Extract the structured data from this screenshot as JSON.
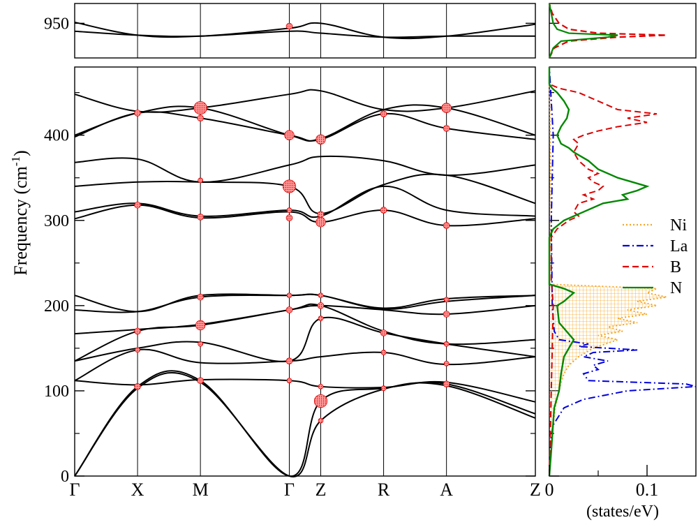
{
  "chart_data": [
    {
      "type": "line",
      "panel": "phonon-dispersion",
      "ylabel": "Frequency (cm",
      "ylabel_superscript": "-1",
      "ylabel_close": ")",
      "lower_ylim": [
        0,
        480
      ],
      "upper_ylim": [
        915,
        970
      ],
      "lower_yticks": [
        "0",
        "100",
        "200",
        "300",
        "400"
      ],
      "lower_ytick_values": [
        0,
        100,
        200,
        300,
        400
      ],
      "upper_yticks": [
        "950"
      ],
      "upper_ytick_values": [
        950
      ],
      "k_points": [
        {
          "label": "Γ",
          "pos": 0
        },
        {
          "label": "X",
          "pos": 0.5
        },
        {
          "label": "M",
          "pos": 1.0
        },
        {
          "label": "Γ",
          "pos": 1.707
        },
        {
          "label": "Z",
          "pos": 1.957
        },
        {
          "label": "R",
          "pos": 2.457
        },
        {
          "label": "A",
          "pos": 2.957
        },
        {
          "label": "Z",
          "pos": 3.664
        }
      ],
      "upper_bands": [
        {
          "x": [
            0,
            0.5,
            1.0,
            1.707,
            1.957,
            2.457,
            2.957,
            3.664
          ],
          "y": [
            951,
            938,
            937,
            945,
            950,
            936,
            937,
            949
          ]
        },
        {
          "x": [
            0,
            0.5,
            1.0,
            1.707,
            1.957,
            2.457,
            2.957,
            3.664
          ],
          "y": [
            942,
            938,
            937,
            942,
            940,
            936,
            937,
            937
          ]
        }
      ],
      "lower_bands": [
        {
          "x": [
            0,
            0.5,
            1.0,
            1.707,
            1.957,
            2.457,
            2.957,
            3.664
          ],
          "y": [
            0,
            103,
            110,
            0,
            65,
            102,
            106,
            68
          ]
        },
        {
          "x": [
            0,
            0.5,
            1.0,
            1.707,
            1.957,
            2.457,
            2.957,
            3.664
          ],
          "y": [
            0,
            105,
            112,
            0,
            88,
            103,
            108,
            73
          ]
        },
        {
          "x": [
            0,
            0.5,
            1.0,
            1.707,
            1.957,
            2.457,
            2.957,
            3.664
          ],
          "y": [
            112,
            107,
            113,
            112,
            105,
            104,
            110,
            87
          ]
        },
        {
          "x": [
            0,
            0.5,
            1.0,
            1.707,
            1.957,
            2.457,
            2.957,
            3.664
          ],
          "y": [
            112,
            148,
            133,
            135,
            140,
            145,
            131,
            140
          ]
        },
        {
          "x": [
            0,
            0.5,
            1.0,
            1.707,
            1.957,
            2.457,
            2.957,
            3.664
          ],
          "y": [
            135,
            150,
            157,
            135,
            185,
            168,
            155,
            140
          ]
        },
        {
          "x": [
            0,
            0.5,
            1.0,
            1.707,
            1.957,
            2.457,
            2.957,
            3.664
          ],
          "y": [
            135,
            170,
            177,
            195,
            200,
            170,
            155,
            160
          ]
        },
        {
          "x": [
            0,
            0.5,
            1.0,
            1.707,
            1.957,
            2.457,
            2.957,
            3.664
          ],
          "y": [
            167,
            172,
            178,
            195,
            200,
            195,
            190,
            200
          ]
        },
        {
          "x": [
            0,
            0.5,
            1.0,
            1.707,
            1.957,
            2.457,
            2.957,
            3.664
          ],
          "y": [
            195,
            193,
            210,
            212,
            212,
            196,
            205,
            212
          ]
        },
        {
          "x": [
            0,
            0.5,
            1.0,
            1.707,
            1.957,
            2.457,
            2.957,
            3.664
          ],
          "y": [
            212,
            193,
            212,
            212,
            212,
            197,
            208,
            212
          ]
        },
        {
          "x": [
            0,
            0.5,
            1.0,
            1.707,
            1.957,
            2.457,
            2.957,
            3.664
          ],
          "y": [
            302,
            318,
            303,
            310,
            298,
            312,
            294,
            302
          ]
        },
        {
          "x": [
            0,
            0.5,
            1.0,
            1.707,
            1.957,
            2.457,
            2.957,
            3.664
          ],
          "y": [
            310,
            320,
            305,
            312,
            305,
            340,
            312,
            305
          ]
        },
        {
          "x": [
            0,
            0.5,
            1.0,
            1.707,
            1.957,
            2.457,
            2.957,
            3.664
          ],
          "y": [
            340,
            345,
            345,
            340,
            308,
            342,
            353,
            320
          ]
        },
        {
          "x": [
            0,
            0.5,
            1.0,
            1.707,
            1.957,
            2.457,
            2.957,
            3.664
          ],
          "y": [
            368,
            372,
            345,
            365,
            375,
            370,
            353,
            365
          ]
        },
        {
          "x": [
            0,
            0.5,
            1.0,
            1.707,
            1.957,
            2.457,
            2.957,
            3.664
          ],
          "y": [
            398,
            426,
            420,
            400,
            395,
            425,
            408,
            395
          ]
        },
        {
          "x": [
            0,
            0.5,
            1.0,
            1.707,
            1.957,
            2.457,
            2.957,
            3.664
          ],
          "y": [
            400,
            426,
            432,
            400,
            396,
            430,
            432,
            400
          ]
        },
        {
          "x": [
            0,
            0.5,
            1.0,
            1.707,
            1.957,
            2.457,
            2.957,
            3.664
          ],
          "y": [
            448,
            428,
            432,
            448,
            452,
            430,
            432,
            452
          ]
        }
      ],
      "markers": [
        {
          "x": 1.707,
          "y": 947,
          "size": 1
        },
        {
          "x": 0.5,
          "y": 426,
          "size": 1
        },
        {
          "x": 1.0,
          "y": 432,
          "size": 3
        },
        {
          "x": 1.0,
          "y": 420,
          "size": 1
        },
        {
          "x": 1.707,
          "y": 400,
          "size": 2
        },
        {
          "x": 1.957,
          "y": 395,
          "size": 2
        },
        {
          "x": 2.457,
          "y": 425,
          "size": 1
        },
        {
          "x": 2.957,
          "y": 432,
          "size": 2
        },
        {
          "x": 2.957,
          "y": 408,
          "size": 1
        },
        {
          "x": 1.707,
          "y": 340,
          "size": 3
        },
        {
          "x": 0.5,
          "y": 318,
          "size": 1
        },
        {
          "x": 1.0,
          "y": 304,
          "size": 1
        },
        {
          "x": 1.707,
          "y": 303,
          "size": 1
        },
        {
          "x": 1.957,
          "y": 298,
          "size": 2
        },
        {
          "x": 1.957,
          "y": 307,
          "size": 1
        },
        {
          "x": 2.457,
          "y": 312,
          "size": 1
        },
        {
          "x": 2.957,
          "y": 294,
          "size": 1
        },
        {
          "x": 1.0,
          "y": 347,
          "size": 0.6
        },
        {
          "x": 1.707,
          "y": 312,
          "size": 0.6
        },
        {
          "x": 1.0,
          "y": 210,
          "size": 1
        },
        {
          "x": 1.707,
          "y": 195,
          "size": 1
        },
        {
          "x": 1.957,
          "y": 200,
          "size": 1
        },
        {
          "x": 1.957,
          "y": 212,
          "size": 0.6
        },
        {
          "x": 1.707,
          "y": 212,
          "size": 0.6
        },
        {
          "x": 0.5,
          "y": 170,
          "size": 1
        },
        {
          "x": 1.0,
          "y": 177,
          "size": 2
        },
        {
          "x": 2.457,
          "y": 168,
          "size": 1
        },
        {
          "x": 2.957,
          "y": 190,
          "size": 1
        },
        {
          "x": 2.957,
          "y": 207,
          "size": 0.6
        },
        {
          "x": 0.5,
          "y": 148,
          "size": 0.6
        },
        {
          "x": 1.0,
          "y": 155,
          "size": 0.6
        },
        {
          "x": 1.707,
          "y": 135,
          "size": 1
        },
        {
          "x": 1.957,
          "y": 185,
          "size": 0.6
        },
        {
          "x": 2.457,
          "y": 145,
          "size": 0.6
        },
        {
          "x": 2.957,
          "y": 155,
          "size": 0.6
        },
        {
          "x": 0.5,
          "y": 105,
          "size": 1
        },
        {
          "x": 1.0,
          "y": 112,
          "size": 1
        },
        {
          "x": 1.707,
          "y": 112,
          "size": 0.6
        },
        {
          "x": 1.957,
          "y": 88,
          "size": 3
        },
        {
          "x": 1.957,
          "y": 105,
          "size": 0.6
        },
        {
          "x": 2.457,
          "y": 103,
          "size": 0.6
        },
        {
          "x": 2.957,
          "y": 108,
          "size": 1
        },
        {
          "x": 2.957,
          "y": 132,
          "size": 0.6
        },
        {
          "x": 1.957,
          "y": 65,
          "size": 0.6
        }
      ]
    },
    {
      "type": "line",
      "panel": "density-of-states",
      "xlabel": "(states/eV)",
      "xlim": [
        0,
        0.15
      ],
      "xticks": [
        "0",
        "0.1"
      ],
      "xtick_values": [
        0,
        0.1
      ],
      "legend_position": "right",
      "series": [
        {
          "name": "Ni",
          "color": "#f5a623",
          "style": "dotted",
          "hatched_fill": true,
          "freq": [
            0,
            40,
            80,
            100,
            110,
            120,
            130,
            140,
            150,
            160,
            165,
            170,
            175,
            180,
            185,
            190,
            195,
            200,
            205,
            210,
            215,
            220,
            225,
            260,
            300,
            480
          ],
          "dos": [
            0,
            0.002,
            0.006,
            0.01,
            0.012,
            0.015,
            0.02,
            0.03,
            0.045,
            0.07,
            0.05,
            0.075,
            0.06,
            0.09,
            0.07,
            0.1,
            0.08,
            0.11,
            0.09,
            0.12,
            0.1,
            0.11,
            0,
            0,
            0.002,
            0
          ]
        },
        {
          "name": "La",
          "color": "#0000dd",
          "style": "dash-dot",
          "freq": [
            0,
            40,
            60,
            80,
            90,
            100,
            105,
            108,
            112,
            120,
            125,
            130,
            135,
            140,
            145,
            148,
            152,
            155,
            160,
            170,
            200,
            300,
            400,
            480
          ],
          "dos": [
            0,
            0.001,
            0.004,
            0.015,
            0.035,
            0.08,
            0.15,
            0.14,
            0.04,
            0.035,
            0.05,
            0.045,
            0.06,
            0.035,
            0.045,
            0.09,
            0.03,
            0.04,
            0.01,
            0.005,
            0.003,
            0.002,
            0.004,
            0
          ]
        },
        {
          "name": "B",
          "color": "#dd0000",
          "style": "dashed",
          "freq": [
            0,
            100,
            200,
            230,
            280,
            290,
            300,
            305,
            310,
            320,
            325,
            330,
            335,
            340,
            345,
            350,
            355,
            360,
            370,
            380,
            390,
            395,
            400,
            405,
            410,
            415,
            420,
            425,
            430,
            440,
            450,
            455,
            460,
            480
          ],
          "dos": [
            0,
            0.002,
            0.004,
            0.002,
            0.002,
            0.008,
            0.02,
            0.03,
            0.025,
            0.03,
            0.045,
            0.035,
            0.05,
            0.055,
            0.045,
            0.04,
            0.05,
            0.04,
            0.03,
            0.025,
            0.03,
            0.025,
            0.035,
            0.05,
            0.07,
            0.1,
            0.08,
            0.11,
            0.07,
            0.05,
            0.03,
            0.01,
            0,
            0
          ]
        },
        {
          "name": "N",
          "color": "#008800",
          "style": "solid",
          "freq": [
            0,
            30,
            80,
            100,
            120,
            140,
            150,
            160,
            180,
            200,
            205,
            210,
            215,
            220,
            225,
            280,
            290,
            300,
            310,
            320,
            325,
            330,
            335,
            340,
            345,
            350,
            360,
            370,
            380,
            385,
            390,
            395,
            400,
            410,
            420,
            430,
            440,
            450,
            455,
            460,
            480
          ],
          "dos": [
            0,
            0.002,
            0.005,
            0.01,
            0.012,
            0.015,
            0.02,
            0.025,
            0.01,
            0.008,
            0.015,
            0.02,
            0.025,
            0.015,
            0,
            0,
            0.004,
            0.015,
            0.035,
            0.055,
            0.08,
            0.075,
            0.09,
            0.1,
            0.085,
            0.07,
            0.05,
            0.04,
            0.025,
            0.02,
            0.012,
            0.01,
            0.008,
            0.012,
            0.018,
            0.02,
            0.015,
            0.008,
            0.003,
            0,
            0
          ]
        }
      ],
      "upper_series": [
        {
          "name": "B",
          "color": "#dd0000",
          "style": "dashed",
          "freq": [
            915,
            925,
            932,
            936,
            938,
            940,
            944,
            950,
            960,
            970
          ],
          "dos": [
            0,
            0.005,
            0.02,
            0.07,
            0.12,
            0.05,
            0.02,
            0.01,
            0.003,
            0
          ]
        },
        {
          "name": "N",
          "color": "#008800",
          "style": "solid",
          "freq": [
            915,
            925,
            932,
            936,
            938,
            940,
            944,
            950,
            960,
            970
          ],
          "dos": [
            0,
            0.004,
            0.012,
            0.06,
            0.07,
            0.02,
            0.008,
            0.004,
            0.002,
            0
          ]
        }
      ]
    }
  ]
}
